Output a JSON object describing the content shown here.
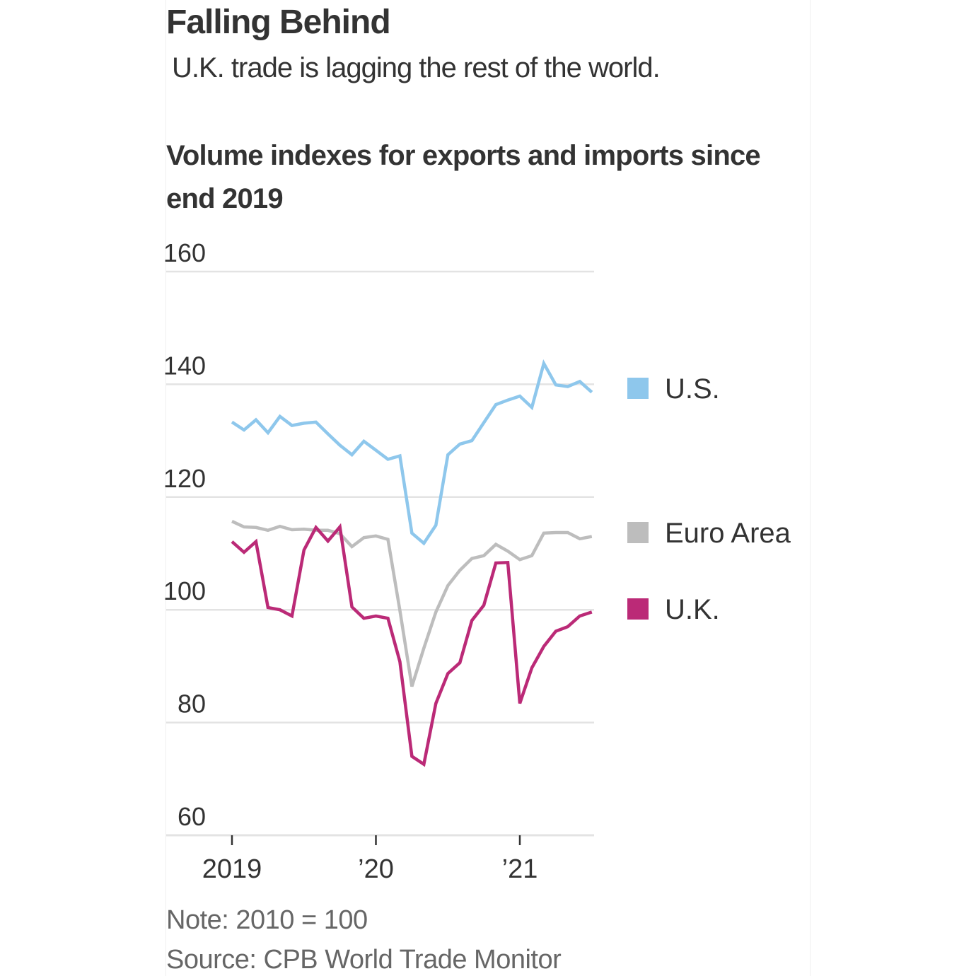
{
  "header": {
    "title": "Falling Behind",
    "subtitle": "U.K. trade is lagging the rest of the world.",
    "chart_title": "Volume indexes for exports and imports since end 2019"
  },
  "footer": {
    "note": "Note: 2010 = 100",
    "source": "Source: CPB World Trade Monitor"
  },
  "chart_data": {
    "type": "line",
    "title": "Volume indexes for exports and imports since end 2019",
    "xlabel": "",
    "ylabel": "",
    "x_start": "2019-01",
    "x_frequency": "monthly",
    "x": [
      "2019-01",
      "2019-02",
      "2019-03",
      "2019-04",
      "2019-05",
      "2019-06",
      "2019-07",
      "2019-08",
      "2019-09",
      "2019-10",
      "2019-11",
      "2019-12",
      "2020-01",
      "2020-02",
      "2020-03",
      "2020-04",
      "2020-05",
      "2020-06",
      "2020-07",
      "2020-08",
      "2020-09",
      "2020-10",
      "2020-11",
      "2020-12",
      "2021-01",
      "2021-02",
      "2021-03",
      "2021-04",
      "2021-05",
      "2021-06",
      "2021-07"
    ],
    "xticks": [
      {
        "label": "2019",
        "x": "2019-01"
      },
      {
        "label": "’20",
        "x": "2020-01"
      },
      {
        "label": "’21",
        "x": "2021-01"
      }
    ],
    "ylim": [
      60,
      160
    ],
    "yticks": [
      60,
      80,
      100,
      120,
      140,
      160
    ],
    "grid": true,
    "legend_position": "right",
    "series": [
      {
        "name": "U.S.",
        "color": "#8ec7ec",
        "values": [
          133.3,
          131.9,
          133.7,
          131.4,
          134.3,
          132.7,
          133.1,
          133.3,
          131.2,
          129.2,
          127.5,
          129.9,
          128.3,
          126.7,
          127.3,
          113.6,
          111.8,
          115.0,
          127.5,
          129.4,
          130.0,
          133.2,
          136.4,
          137.2,
          137.9,
          135.9,
          143.7,
          139.9,
          139.6,
          140.5,
          138.6
        ]
      },
      {
        "name": "Euro Area",
        "color": "#bdbdbd",
        "values": [
          115.7,
          114.7,
          114.6,
          114.1,
          114.8,
          114.2,
          114.3,
          114.1,
          114.1,
          113.5,
          111.2,
          112.8,
          113.1,
          112.5,
          99.9,
          86.4,
          93.2,
          99.6,
          104.3,
          107.0,
          109.1,
          109.6,
          111.6,
          110.4,
          108.9,
          109.6,
          113.6,
          113.7,
          113.7,
          112.6,
          113.0
        ]
      },
      {
        "name": "U.K.",
        "color": "#bb2a77",
        "values": [
          112.1,
          110.2,
          112.1,
          100.4,
          100.0,
          98.9,
          110.6,
          114.6,
          112.2,
          114.7,
          100.5,
          98.5,
          98.9,
          98.5,
          90.8,
          74.0,
          72.6,
          83.4,
          88.7,
          90.6,
          98.1,
          100.8,
          108.3,
          108.4,
          83.4,
          89.7,
          93.5,
          96.2,
          97.0,
          98.9,
          99.6
        ]
      }
    ]
  }
}
